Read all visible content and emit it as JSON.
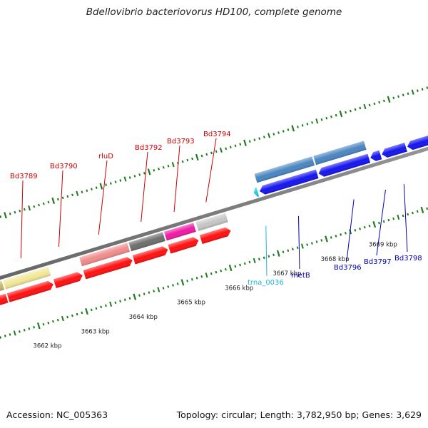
{
  "title": "Bdellovibrio bacteriovorus HD100, complete genome",
  "footer": {
    "accession": "Accession: NC_005363",
    "summary": "Topology: circular; Length: 3,782,950 bp; Genes: 3,629"
  },
  "colors": {
    "cds_red": "#ff1010",
    "cds_blue": "#1515f0",
    "rna_cyan": "#22c8f0",
    "steel_blue": "#4a86c2",
    "pale_yellow": "#f2e898",
    "olive": "#c4b870",
    "salmon": "#f08c8c",
    "dark_grey": "#6e6e6e",
    "magenta": "#f01aa6",
    "light_grey": "#c6c6c6",
    "tick_green": "#1f7a1f",
    "label_red": "#cc0000",
    "label_blue": "#0000aa",
    "label_cyan": "#19b7df"
  },
  "scale": {
    "unit": "kbp",
    "ticks": [
      {
        "kbp": 3662,
        "label": "3662 kbp"
      },
      {
        "kbp": 3663,
        "label": "3663 kbp"
      },
      {
        "kbp": 3664,
        "label": "3664 kbp"
      },
      {
        "kbp": 3665,
        "label": "3665 kbp"
      },
      {
        "kbp": 3666,
        "label": "3666 kbp"
      },
      {
        "kbp": 3667,
        "label": "3667 kbp"
      },
      {
        "kbp": 3668,
        "label": "3668 kbp"
      },
      {
        "kbp": 3669,
        "label": "3669 kbp"
      }
    ]
  },
  "features": [
    {
      "track": "cds_rev",
      "start": 3661.2,
      "end": 3661.55,
      "dir": "-",
      "color": "cds_red"
    },
    {
      "track": "cds_rev",
      "start": 3661.58,
      "end": 3662.52,
      "dir": "+",
      "color": "cds_red",
      "name": "Bd3789"
    },
    {
      "track": "cds_rev",
      "start": 3662.55,
      "end": 3663.13,
      "dir": "+",
      "color": "cds_red",
      "name": "Bd3790"
    },
    {
      "track": "cds_rev",
      "start": 3663.17,
      "end": 3664.17,
      "dir": "+",
      "color": "cds_red",
      "name": "rluD"
    },
    {
      "track": "cds_rev",
      "start": 3664.2,
      "end": 3664.91,
      "dir": "+",
      "color": "cds_red",
      "name": "Bd3792"
    },
    {
      "track": "cds_rev",
      "start": 3664.94,
      "end": 3665.55,
      "dir": "+",
      "color": "cds_red",
      "name": "Bd3793"
    },
    {
      "track": "cds_rev",
      "start": 3665.6,
      "end": 3666.22,
      "dir": "+",
      "color": "cds_red",
      "name": "Bd3794"
    },
    {
      "track": "cog_rev",
      "start": 3661.2,
      "end": 3661.55,
      "color": "olive"
    },
    {
      "track": "cog_rev",
      "start": 3661.58,
      "end": 3662.52,
      "color": "pale_yellow"
    },
    {
      "track": "cog_rev",
      "start": 3663.17,
      "end": 3664.17,
      "color": "salmon"
    },
    {
      "track": "cog_rev",
      "start": 3664.2,
      "end": 3664.91,
      "color": "dark_grey"
    },
    {
      "track": "cog_rev",
      "start": 3664.94,
      "end": 3665.55,
      "color": "magenta"
    },
    {
      "track": "cog_rev",
      "start": 3665.6,
      "end": 3666.22,
      "color": "light_grey"
    },
    {
      "track": "cds_fwd",
      "start": 3666.88,
      "end": 3666.96,
      "dir": "-",
      "color": "rna_cyan",
      "name": "trna_0036"
    },
    {
      "track": "cds_fwd",
      "start": 3667.0,
      "end": 3668.2,
      "dir": "-",
      "color": "cds_blue",
      "name": "metB"
    },
    {
      "track": "cds_fwd",
      "start": 3668.23,
      "end": 3669.28,
      "dir": "-",
      "color": "cds_blue",
      "name": "Bd3796"
    },
    {
      "track": "cds_fwd",
      "start": 3669.31,
      "end": 3669.52,
      "dir": "-",
      "color": "cds_blue",
      "name": "Bd3797"
    },
    {
      "track": "cds_fwd",
      "start": 3669.55,
      "end": 3670.05,
      "dir": "-",
      "color": "cds_blue",
      "name": "Bd3798"
    },
    {
      "track": "cds_fwd",
      "start": 3670.08,
      "end": 3670.6,
      "dir": "-",
      "color": "cds_blue"
    },
    {
      "track": "cog_fwd",
      "start": 3667.0,
      "end": 3668.2,
      "color": "steel_blue"
    },
    {
      "track": "cog_fwd",
      "start": 3668.23,
      "end": 3669.28,
      "color": "steel_blue"
    }
  ]
}
